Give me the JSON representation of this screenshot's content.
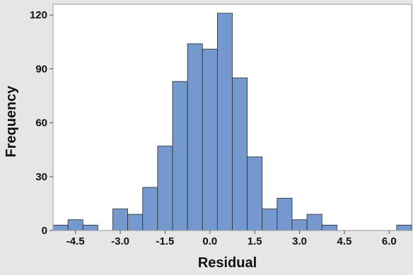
{
  "chart_data": {
    "type": "bar",
    "title": "",
    "xlabel": "Residual",
    "ylabel": "Frequency",
    "bin_width": 0.5,
    "bin_start": -5.25,
    "xlim": [
      -5.25,
      6.75
    ],
    "ylim": [
      0,
      126
    ],
    "x_ticks": [
      -4.5,
      -3.0,
      -1.5,
      0.0,
      1.5,
      3.0,
      4.5,
      6.0
    ],
    "x_tick_labels": [
      "-4.5",
      "-3.0",
      "-1.5",
      "0.0",
      "1.5",
      "3.0",
      "4.5",
      "6.0"
    ],
    "y_ticks": [
      0,
      30,
      60,
      90,
      120
    ],
    "y_tick_labels": [
      "0",
      "30",
      "60",
      "90",
      "120"
    ],
    "values": [
      3,
      6,
      3,
      0,
      12,
      9,
      24,
      47,
      83,
      104,
      101,
      121,
      85,
      41,
      12,
      18,
      6,
      9,
      3,
      0,
      0,
      0,
      0,
      3
    ],
    "grid": false,
    "colors": {
      "bar_fill": "#7399cf",
      "bar_stroke": "#2b2b2b",
      "plot_bg": "#ffffff",
      "frame": "#e6e6e6",
      "axis": "#9a9a9a",
      "text": "#111111"
    }
  }
}
